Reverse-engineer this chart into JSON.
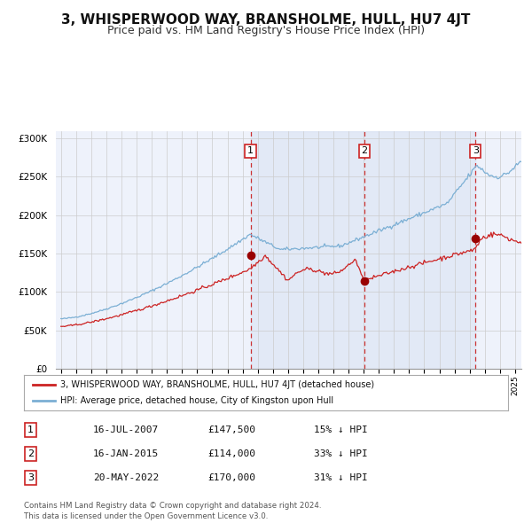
{
  "title": "3, WHISPERWOOD WAY, BRANSHOLME, HULL, HU7 4JT",
  "subtitle": "Price paid vs. HM Land Registry's House Price Index (HPI)",
  "title_fontsize": 11,
  "subtitle_fontsize": 9,
  "background_color": "#ffffff",
  "grid_color": "#cccccc",
  "sale_dates": [
    "2007-07-16",
    "2015-01-16",
    "2022-05-20"
  ],
  "sale_prices": [
    147500,
    114000,
    170000
  ],
  "sale_labels": [
    "1",
    "2",
    "3"
  ],
  "legend_label_red": "3, WHISPERWOOD WAY, BRANSHOLME, HULL, HU7 4JT (detached house)",
  "legend_label_blue": "HPI: Average price, detached house, City of Kingston upon Hull",
  "table_rows": [
    [
      "1",
      "16-JUL-2007",
      "£147,500",
      "15% ↓ HPI"
    ],
    [
      "2",
      "16-JAN-2015",
      "£114,000",
      "33% ↓ HPI"
    ],
    [
      "3",
      "20-MAY-2022",
      "£170,000",
      "31% ↓ HPI"
    ]
  ],
  "footnote1": "Contains HM Land Registry data © Crown copyright and database right 2024.",
  "footnote2": "This data is licensed under the Open Government Licence v3.0.",
  "ylim": [
    0,
    310000
  ],
  "yticks": [
    0,
    50000,
    100000,
    150000,
    200000,
    250000,
    300000
  ],
  "ytick_labels": [
    "£0",
    "£50K",
    "£100K",
    "£150K",
    "£200K",
    "£250K",
    "£300K"
  ]
}
